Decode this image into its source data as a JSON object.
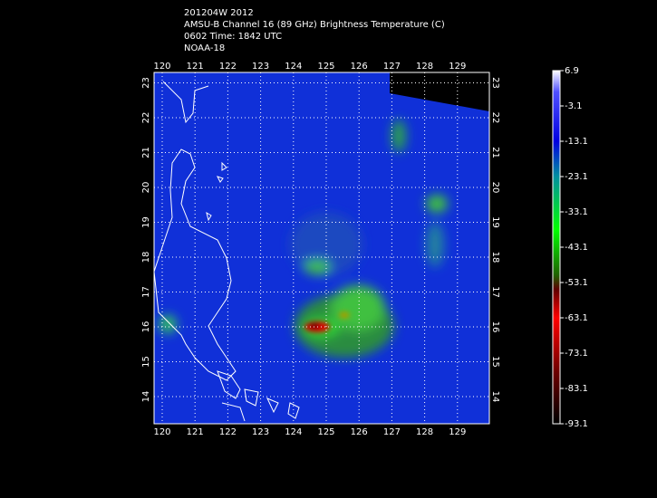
{
  "header": {
    "lines": [
      "201204W 2012",
      "AMSU-B Channel 16 (89 GHz) Brightness Temperature (C)",
      "0602 Time: 1842 UTC",
      "NOAA-18"
    ]
  },
  "map": {
    "lon_ticks": [
      120,
      121,
      122,
      123,
      124,
      125,
      126,
      127,
      128,
      129
    ],
    "lat_ticks": [
      14,
      15,
      16,
      17,
      18,
      19,
      20,
      21,
      22,
      23
    ]
  },
  "colorbar": {
    "ticks": [
      6.9,
      -3.1,
      -13.1,
      -23.1,
      -33.1,
      -43.1,
      -53.1,
      -63.1,
      -73.1,
      -83.1,
      -93.1
    ]
  }
}
